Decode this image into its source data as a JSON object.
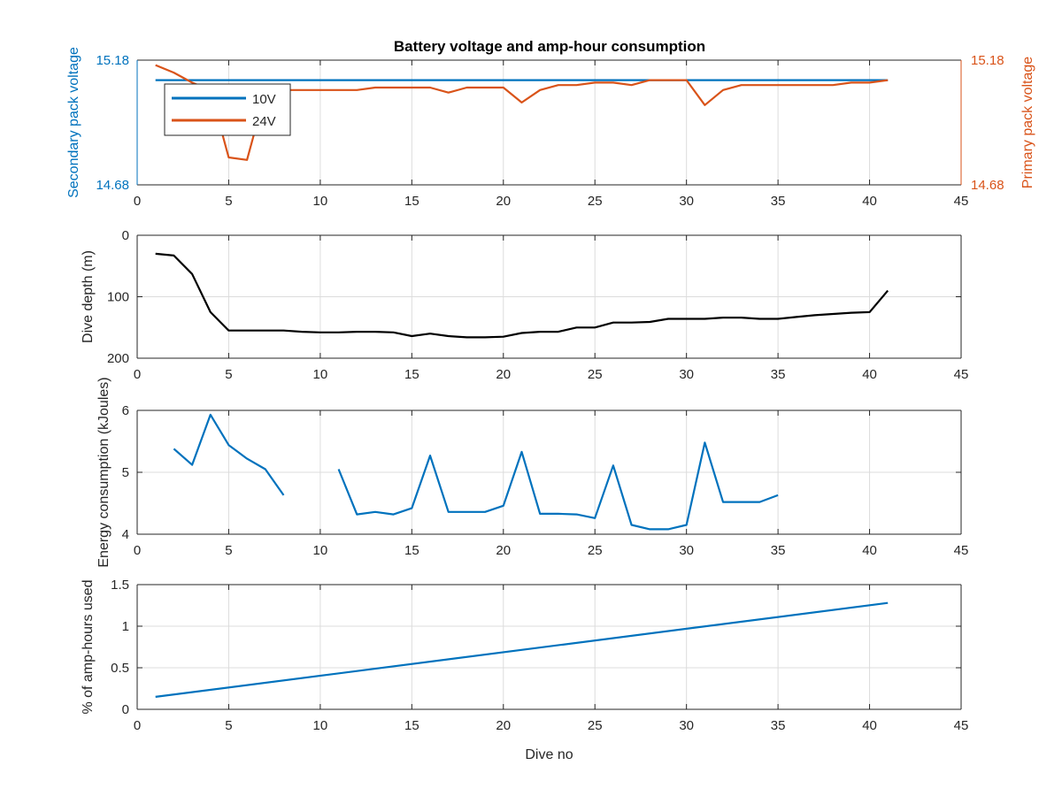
{
  "figure": {
    "title": "Battery voltage and amp-hour consumption"
  },
  "colors": {
    "blue": "#0072BD",
    "orange": "#D95319",
    "black": "#000000",
    "grid": "#dcdcdc",
    "axis": "#262626"
  },
  "chart_data": [
    {
      "type": "line",
      "ylabel_left": "Secondary pack voltage",
      "ylabel_right": "Primary pack voltage",
      "xlim": [
        0,
        45
      ],
      "ylim": [
        14.68,
        15.18
      ],
      "xticks": [
        "0",
        "5",
        "10",
        "15",
        "20",
        "25",
        "30",
        "35",
        "40",
        "45"
      ],
      "yticks_left": [
        "14.68",
        "15.18"
      ],
      "yticks_right": [
        "14.68",
        "15.18"
      ],
      "legend": {
        "position": "top-left",
        "entries": [
          "10V",
          "24V"
        ]
      },
      "grid": true,
      "series": [
        {
          "name": "10V",
          "color": "#0072BD",
          "x": [
            1,
            41
          ],
          "y": [
            15.1,
            15.1
          ]
        },
        {
          "name": "24V",
          "color": "#D95319",
          "x": [
            1,
            2,
            3,
            4,
            5,
            6,
            7,
            8,
            9,
            10,
            11,
            12,
            13,
            14,
            15,
            16,
            17,
            18,
            19,
            20,
            21,
            22,
            23,
            24,
            25,
            26,
            27,
            28,
            29,
            30,
            31,
            32,
            33,
            34,
            35,
            36,
            37,
            38,
            39,
            40,
            41
          ],
          "y": [
            15.16,
            15.13,
            15.09,
            15.06,
            14.79,
            14.78,
            15.05,
            15.06,
            15.06,
            15.06,
            15.06,
            15.06,
            15.07,
            15.07,
            15.07,
            15.07,
            15.05,
            15.07,
            15.07,
            15.07,
            15.01,
            15.06,
            15.08,
            15.08,
            15.09,
            15.09,
            15.08,
            15.1,
            15.1,
            15.1,
            15.0,
            15.06,
            15.08,
            15.08,
            15.08,
            15.08,
            15.08,
            15.08,
            15.09,
            15.09,
            15.1
          ]
        }
      ]
    },
    {
      "type": "line",
      "ylabel": "Dive depth (m)",
      "xlim": [
        0,
        45
      ],
      "ylim": [
        0,
        200
      ],
      "y_reversed": true,
      "xticks": [
        "0",
        "5",
        "10",
        "15",
        "20",
        "25",
        "30",
        "35",
        "40",
        "45"
      ],
      "yticks": [
        "0",
        "100",
        "200"
      ],
      "grid": true,
      "series": [
        {
          "color": "#000000",
          "x": [
            1,
            2,
            3,
            4,
            5,
            6,
            7,
            8,
            9,
            10,
            11,
            12,
            13,
            14,
            15,
            16,
            17,
            18,
            19,
            20,
            21,
            22,
            23,
            24,
            25,
            26,
            27,
            28,
            29,
            30,
            31,
            32,
            33,
            34,
            35,
            36,
            37,
            38,
            39,
            40,
            41
          ],
          "y": [
            30,
            33,
            63,
            125,
            155,
            155,
            155,
            155,
            157,
            158,
            158,
            157,
            157,
            158,
            164,
            160,
            164,
            166,
            166,
            165,
            159,
            157,
            157,
            150,
            150,
            142,
            142,
            141,
            136,
            136,
            136,
            134,
            134,
            136,
            136,
            133,
            130,
            128,
            126,
            125,
            90
          ]
        }
      ]
    },
    {
      "type": "line",
      "ylabel": "Energy consumption (kJoules)",
      "xlim": [
        0,
        45
      ],
      "ylim": [
        4,
        6
      ],
      "xticks": [
        "0",
        "5",
        "10",
        "15",
        "20",
        "25",
        "30",
        "35",
        "40",
        "45"
      ],
      "yticks": [
        "4",
        "5",
        "6"
      ],
      "grid": true,
      "series": [
        {
          "color": "#0072BD",
          "x": [
            2,
            3,
            4,
            5,
            6,
            7,
            8,
            9,
            10,
            11,
            12,
            13,
            14,
            15,
            16,
            17,
            18,
            19,
            20,
            21,
            22,
            23,
            24,
            25,
            26,
            27,
            28,
            29,
            30,
            31,
            32,
            33,
            34,
            35
          ],
          "y": [
            5.38,
            5.12,
            5.93,
            5.44,
            5.22,
            5.05,
            4.63,
            null,
            null,
            5.05,
            4.32,
            4.36,
            4.32,
            4.42,
            5.27,
            4.36,
            4.36,
            4.36,
            4.46,
            5.33,
            4.33,
            4.33,
            4.32,
            4.26,
            5.11,
            4.15,
            4.08,
            4.08,
            4.15,
            5.48,
            4.52,
            4.52,
            4.52,
            4.63
          ]
        }
      ]
    },
    {
      "type": "line",
      "ylabel": "% of amp-hours used",
      "xlabel": "Dive no",
      "xlim": [
        0,
        45
      ],
      "ylim": [
        0,
        1.5
      ],
      "xticks": [
        "0",
        "5",
        "10",
        "15",
        "20",
        "25",
        "30",
        "35",
        "40",
        "45"
      ],
      "yticks": [
        "0",
        "0.5",
        "1",
        "1.5"
      ],
      "grid": true,
      "series": [
        {
          "color": "#0072BD",
          "x": [
            1,
            41
          ],
          "y": [
            0.15,
            1.28
          ]
        }
      ]
    }
  ]
}
